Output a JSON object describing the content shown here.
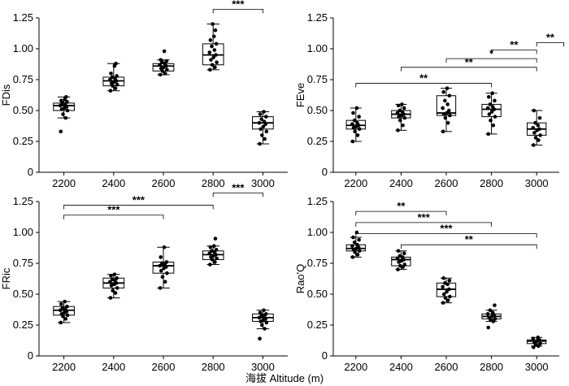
{
  "xlabel": "海拔 Altitude (m)",
  "chart_data": [
    {
      "type": "box",
      "ylabel": "FDis",
      "categories": [
        "2200",
        "2400",
        "2600",
        "2800",
        "3000"
      ],
      "yticks": [
        "0",
        "0.25",
        "0.50",
        "0.75",
        "1.00",
        "1.25"
      ],
      "ylim": [
        0,
        1.25
      ],
      "boxes": [
        {
          "whisker_low": 0.44,
          "q1": 0.5,
          "median": 0.54,
          "q3": 0.56,
          "whisker_high": 0.61,
          "points": [
            0.33,
            0.44,
            0.47,
            0.5,
            0.51,
            0.52,
            0.53,
            0.54,
            0.55,
            0.56,
            0.57,
            0.58,
            0.59,
            0.61
          ]
        },
        {
          "whisker_low": 0.66,
          "q1": 0.7,
          "median": 0.74,
          "q3": 0.77,
          "whisker_high": 0.88,
          "points": [
            0.66,
            0.68,
            0.7,
            0.71,
            0.72,
            0.73,
            0.74,
            0.75,
            0.76,
            0.77,
            0.78,
            0.8,
            0.86,
            0.88
          ]
        },
        {
          "whisker_low": 0.79,
          "q1": 0.82,
          "median": 0.86,
          "q3": 0.88,
          "whisker_high": 0.91,
          "points": [
            0.79,
            0.8,
            0.82,
            0.83,
            0.84,
            0.85,
            0.86,
            0.87,
            0.88,
            0.89,
            0.9,
            0.91,
            0.98
          ]
        },
        {
          "whisker_low": 0.83,
          "q1": 0.87,
          "median": 0.95,
          "q3": 1.04,
          "whisker_high": 1.2,
          "points": [
            0.83,
            0.85,
            0.87,
            0.89,
            0.91,
            0.93,
            0.95,
            0.97,
            0.99,
            1.02,
            1.04,
            1.07,
            1.1,
            1.15,
            1.2
          ]
        },
        {
          "whisker_low": 0.23,
          "q1": 0.35,
          "median": 0.4,
          "q3": 0.45,
          "whisker_high": 0.49,
          "points": [
            0.23,
            0.27,
            0.3,
            0.33,
            0.35,
            0.37,
            0.39,
            0.4,
            0.41,
            0.43,
            0.45,
            0.47,
            0.49
          ]
        }
      ],
      "significance": [
        {
          "from": 3,
          "to": 4,
          "y": 1.32,
          "label": "***"
        }
      ]
    },
    {
      "type": "box",
      "ylabel": "FEve",
      "categories": [
        "2200",
        "2400",
        "2600",
        "2800",
        "3000"
      ],
      "yticks": [
        "0",
        "0.25",
        "0.50",
        "0.75",
        "1.00",
        "1.25"
      ],
      "ylim": [
        0,
        1.25
      ],
      "boxes": [
        {
          "whisker_low": 0.25,
          "q1": 0.35,
          "median": 0.38,
          "q3": 0.42,
          "whisker_high": 0.52,
          "points": [
            0.25,
            0.3,
            0.33,
            0.35,
            0.36,
            0.37,
            0.38,
            0.39,
            0.4,
            0.42,
            0.45,
            0.48,
            0.52
          ]
        },
        {
          "whisker_low": 0.34,
          "q1": 0.44,
          "median": 0.47,
          "q3": 0.5,
          "whisker_high": 0.55,
          "points": [
            0.34,
            0.38,
            0.42,
            0.44,
            0.45,
            0.46,
            0.47,
            0.48,
            0.49,
            0.5,
            0.52,
            0.54,
            0.55
          ]
        },
        {
          "whisker_low": 0.33,
          "q1": 0.46,
          "median": 0.48,
          "q3": 0.62,
          "whisker_high": 0.68,
          "points": [
            0.33,
            0.4,
            0.44,
            0.46,
            0.47,
            0.48,
            0.5,
            0.52,
            0.55,
            0.58,
            0.62,
            0.65,
            0.68
          ]
        },
        {
          "whisker_low": 0.31,
          "q1": 0.45,
          "median": 0.51,
          "q3": 0.55,
          "whisker_high": 0.64,
          "points": [
            0.31,
            0.38,
            0.42,
            0.45,
            0.47,
            0.49,
            0.51,
            0.52,
            0.53,
            0.55,
            0.58,
            0.61,
            0.64
          ]
        },
        {
          "whisker_low": 0.22,
          "q1": 0.3,
          "median": 0.35,
          "q3": 0.4,
          "whisker_high": 0.5,
          "points": [
            0.22,
            0.26,
            0.28,
            0.3,
            0.32,
            0.34,
            0.35,
            0.36,
            0.38,
            0.4,
            0.44,
            0.5
          ]
        }
      ],
      "significance": [
        {
          "from": 0,
          "to": 3,
          "y": 0.72,
          "label": "**"
        },
        {
          "from": 1,
          "to": 4,
          "y": 0.85,
          "label": "**"
        },
        {
          "from": 2,
          "to": 4,
          "y": 0.92,
          "label": "*"
        },
        {
          "from": 3,
          "to": 4,
          "y": 0.99,
          "label": "**"
        },
        {
          "from": 4,
          "to": 4.6,
          "y": 1.05,
          "label": "**"
        }
      ]
    },
    {
      "type": "box",
      "ylabel": "FRic",
      "categories": [
        "2200",
        "2400",
        "2600",
        "2800",
        "3000"
      ],
      "yticks": [
        "0",
        "0.25",
        "0.50",
        "0.75",
        "1.00",
        "1.25"
      ],
      "ylim": [
        0,
        1.25
      ],
      "boxes": [
        {
          "whisker_low": 0.27,
          "q1": 0.33,
          "median": 0.37,
          "q3": 0.4,
          "whisker_high": 0.44,
          "points": [
            0.27,
            0.3,
            0.32,
            0.33,
            0.34,
            0.35,
            0.36,
            0.37,
            0.38,
            0.39,
            0.4,
            0.42,
            0.44
          ]
        },
        {
          "whisker_low": 0.47,
          "q1": 0.55,
          "median": 0.59,
          "q3": 0.63,
          "whisker_high": 0.66,
          "points": [
            0.47,
            0.51,
            0.53,
            0.55,
            0.57,
            0.58,
            0.59,
            0.6,
            0.61,
            0.62,
            0.63,
            0.65,
            0.66
          ]
        },
        {
          "whisker_low": 0.55,
          "q1": 0.67,
          "median": 0.73,
          "q3": 0.76,
          "whisker_high": 0.88,
          "points": [
            0.55,
            0.6,
            0.64,
            0.67,
            0.69,
            0.71,
            0.72,
            0.73,
            0.74,
            0.75,
            0.76,
            0.8,
            0.88
          ]
        },
        {
          "whisker_low": 0.74,
          "q1": 0.78,
          "median": 0.82,
          "q3": 0.85,
          "whisker_high": 0.89,
          "points": [
            0.74,
            0.76,
            0.78,
            0.79,
            0.8,
            0.81,
            0.82,
            0.83,
            0.84,
            0.85,
            0.86,
            0.88,
            0.89,
            0.95
          ]
        },
        {
          "whisker_low": 0.22,
          "q1": 0.28,
          "median": 0.31,
          "q3": 0.34,
          "whisker_high": 0.37,
          "points": [
            0.14,
            0.22,
            0.25,
            0.27,
            0.28,
            0.29,
            0.3,
            0.31,
            0.32,
            0.33,
            0.34,
            0.35,
            0.37
          ]
        }
      ],
      "significance": [
        {
          "from": 0,
          "to": 3,
          "y": 1.22,
          "label": "***"
        },
        {
          "from": 0,
          "to": 2,
          "y": 1.14,
          "label": "***"
        },
        {
          "from": 3,
          "to": 4,
          "y": 1.32,
          "label": "***"
        }
      ]
    },
    {
      "type": "box",
      "ylabel": "Rao'Q",
      "categories": [
        "2200",
        "2400",
        "2600",
        "2800",
        "3000"
      ],
      "yticks": [
        "0",
        "0.25",
        "0.50",
        "0.75",
        "1.00",
        "1.25"
      ],
      "ylim": [
        0,
        1.25
      ],
      "boxes": [
        {
          "whisker_low": 0.8,
          "q1": 0.85,
          "median": 0.87,
          "q3": 0.9,
          "whisker_high": 0.96,
          "points": [
            0.8,
            0.82,
            0.84,
            0.85,
            0.86,
            0.87,
            0.88,
            0.89,
            0.9,
            0.92,
            0.94,
            0.96,
            1.0
          ]
        },
        {
          "whisker_low": 0.7,
          "q1": 0.73,
          "median": 0.78,
          "q3": 0.8,
          "whisker_high": 0.85,
          "points": [
            0.7,
            0.72,
            0.73,
            0.74,
            0.76,
            0.77,
            0.78,
            0.79,
            0.8,
            0.81,
            0.83,
            0.85
          ]
        },
        {
          "whisker_low": 0.43,
          "q1": 0.48,
          "median": 0.54,
          "q3": 0.59,
          "whisker_high": 0.63,
          "points": [
            0.43,
            0.45,
            0.47,
            0.48,
            0.5,
            0.52,
            0.54,
            0.56,
            0.58,
            0.59,
            0.61,
            0.63
          ]
        },
        {
          "whisker_low": 0.28,
          "q1": 0.3,
          "median": 0.32,
          "q3": 0.34,
          "whisker_high": 0.37,
          "points": [
            0.23,
            0.28,
            0.29,
            0.3,
            0.31,
            0.32,
            0.33,
            0.34,
            0.35,
            0.37,
            0.41
          ]
        },
        {
          "whisker_low": 0.08,
          "q1": 0.1,
          "median": 0.12,
          "q3": 0.13,
          "whisker_high": 0.15,
          "points": [
            0.07,
            0.08,
            0.09,
            0.1,
            0.11,
            0.12,
            0.13,
            0.14,
            0.15
          ]
        }
      ],
      "significance": [
        {
          "from": 0,
          "to": 2,
          "y": 1.17,
          "label": "**"
        },
        {
          "from": 0,
          "to": 3,
          "y": 1.08,
          "label": "***"
        },
        {
          "from": 0,
          "to": 4,
          "y": 0.99,
          "label": "***"
        },
        {
          "from": 1,
          "to": 4,
          "y": 0.9,
          "label": "**"
        }
      ]
    }
  ]
}
